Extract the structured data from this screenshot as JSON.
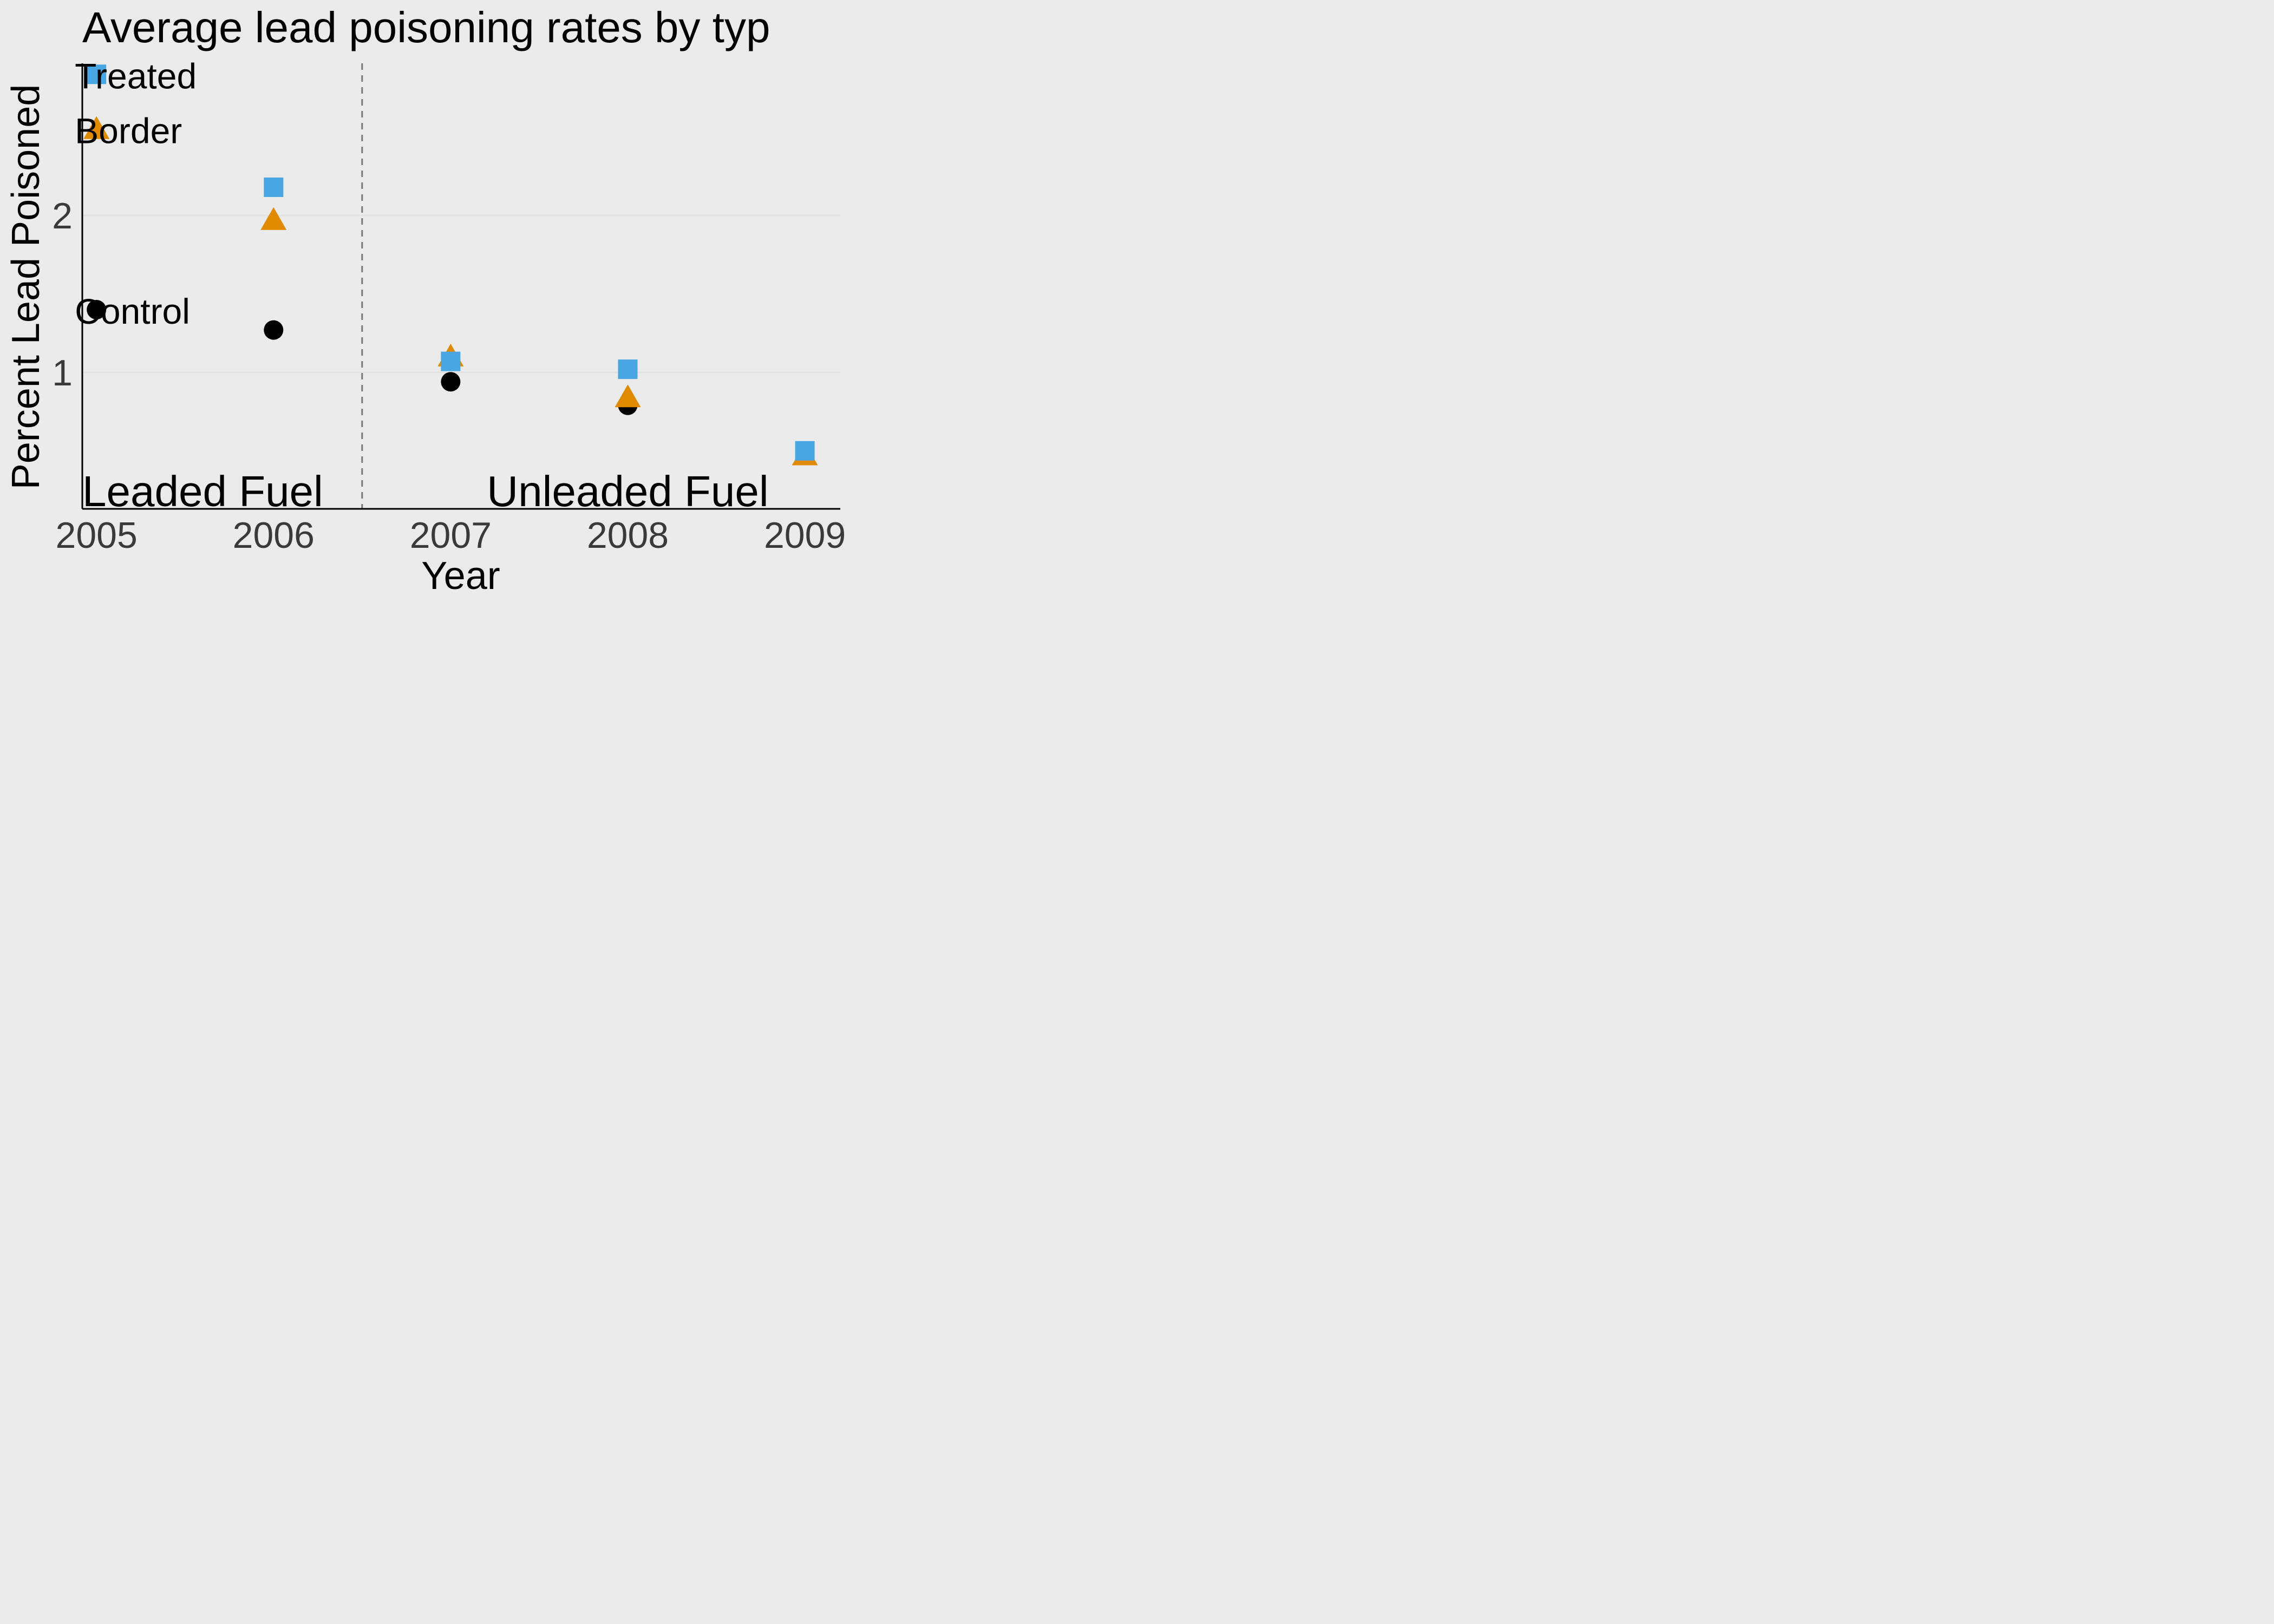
{
  "chart_data": {
    "type": "scatter",
    "title": "Average lead poisoning rates by typ",
    "xlabel": "Year",
    "ylabel": "Percent Lead Poisoned",
    "x_ticks": [
      2005,
      2006,
      2007,
      2008,
      2009
    ],
    "x_tick_labels": [
      "2005",
      "2006",
      "2007",
      "2008",
      "2009"
    ],
    "y_ticks": [
      1,
      2
    ],
    "y_tick_labels": [
      "1",
      "2"
    ],
    "xlim": [
      2004.92,
      2009.2
    ],
    "ylim": [
      0.13,
      2.97
    ],
    "grid": "horizontal",
    "divider_x": 2006.5,
    "region_labels": [
      {
        "text": "Leaded Fuel",
        "x": 2005.6,
        "y": 0.25
      },
      {
        "text": "Unleaded Fuel",
        "x": 2008.0,
        "y": 0.25
      }
    ],
    "series": [
      {
        "name": "Treated",
        "shape": "square",
        "color": "#4aa6e3",
        "values": [
          [
            2006,
            2.18
          ],
          [
            2007,
            1.07
          ],
          [
            2008,
            1.02
          ],
          [
            2009,
            0.5
          ]
        ],
        "label_at": [
          2005.0,
          2.9
        ]
      },
      {
        "name": "Border",
        "shape": "triangle",
        "color": "#e08a00",
        "values": [
          [
            2006,
            1.97
          ],
          [
            2007,
            1.1
          ],
          [
            2008,
            0.84
          ],
          [
            2009,
            0.47
          ]
        ],
        "label_at": [
          2005.0,
          2.55
        ]
      },
      {
        "name": "Control",
        "shape": "circle",
        "color": "#000000",
        "values": [
          [
            2006,
            1.27
          ],
          [
            2007,
            0.94
          ],
          [
            2008,
            0.79
          ]
        ],
        "label_at": [
          2005.0,
          1.4
        ]
      }
    ]
  }
}
